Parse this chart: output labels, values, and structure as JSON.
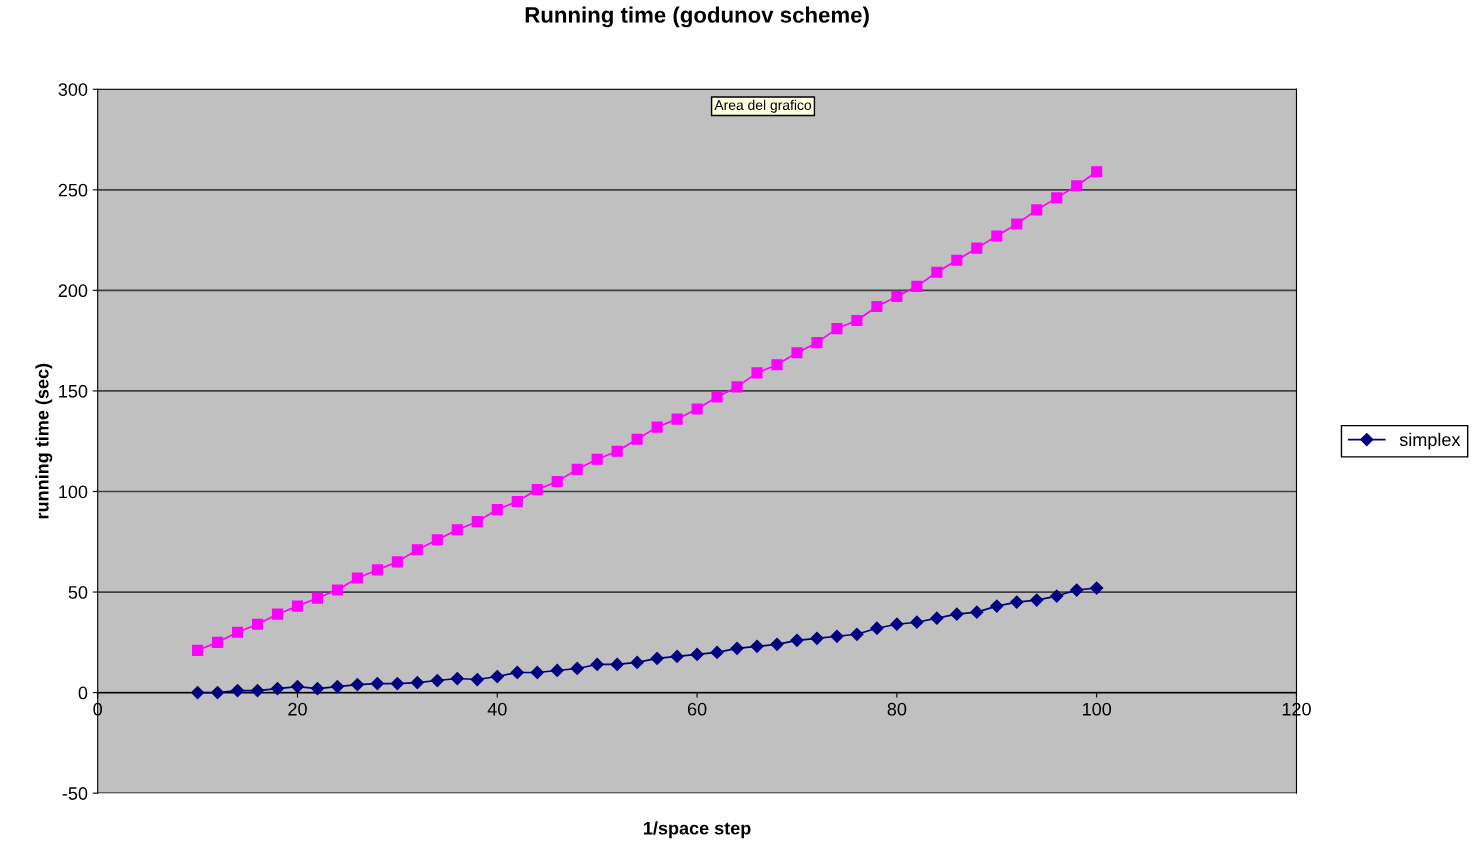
{
  "chart_data": {
    "type": "line",
    "title": "Running time (godunov scheme)",
    "xlabel": "1/space step",
    "ylabel": "running time (sec)",
    "annotations": [
      "Area del grafico"
    ],
    "x": [
      10,
      12,
      14,
      16,
      18,
      20,
      22,
      24,
      26,
      28,
      30,
      32,
      34,
      36,
      38,
      40,
      42,
      44,
      46,
      48,
      50,
      52,
      54,
      56,
      58,
      60,
      62,
      64,
      66,
      68,
      70,
      72,
      74,
      76,
      78,
      80,
      82,
      84,
      86,
      88,
      90,
      92,
      94,
      96,
      98,
      100
    ],
    "series": [
      {
        "name": "simplex",
        "color": "#000080",
        "marker": "diamond",
        "values": [
          0,
          0,
          1,
          1,
          2,
          3,
          2,
          3,
          4,
          4.5,
          4.5,
          5,
          6,
          7,
          6.5,
          8,
          10,
          10,
          11,
          12,
          14,
          14,
          15,
          17,
          18,
          19,
          20,
          22,
          23,
          24,
          26,
          27,
          28,
          29,
          32,
          34,
          35,
          37,
          39,
          40,
          43,
          45,
          46,
          48,
          51,
          52
        ]
      },
      {
        "color": "#ff00ff",
        "marker": "square",
        "values": [
          21,
          25,
          30,
          34,
          39,
          43,
          47,
          51,
          57,
          61,
          65,
          71,
          76,
          81,
          85,
          91,
          95,
          101,
          105,
          111,
          116,
          120,
          126,
          132,
          136,
          141,
          147,
          152,
          159,
          163,
          169,
          174,
          181,
          185,
          192,
          197,
          202,
          209,
          215,
          221,
          227,
          233,
          240,
          246,
          252,
          259
        ]
      }
    ],
    "xlim": [
      0,
      120
    ],
    "xticks": [
      0,
      20,
      40,
      60,
      80,
      100,
      120
    ],
    "ylim": [
      -50,
      300
    ],
    "yticks": [
      -50,
      0,
      50,
      100,
      150,
      200,
      250,
      300
    ],
    "grid": "y",
    "legend": "right"
  }
}
